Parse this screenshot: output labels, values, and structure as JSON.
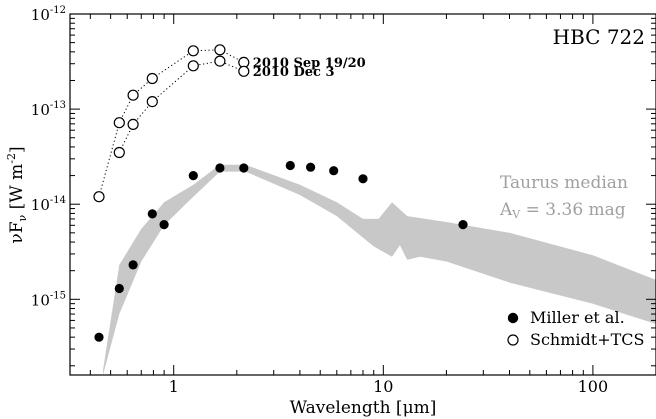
{
  "chart_data": {
    "type": "scatter",
    "title": "HBC 722",
    "xlabel": "Wavelength [μm]",
    "ylabel": "νF_ν [W m^-2]",
    "xscale": "log",
    "yscale": "log",
    "xlim": [
      0.32,
      200
    ],
    "ylim": [
      1.6e-16,
      1e-12
    ],
    "x_ticks": [
      {
        "value": 1,
        "label": "1"
      },
      {
        "value": 10,
        "label": "10"
      },
      {
        "value": 100,
        "label": "100"
      }
    ],
    "y_ticks": [
      {
        "value": 1e-12,
        "label": "10",
        "exp": "-12"
      },
      {
        "value": 1e-13,
        "label": "10",
        "exp": "-13"
      },
      {
        "value": 1e-14,
        "label": "10",
        "exp": "-14"
      },
      {
        "value": 1e-15,
        "label": "10",
        "exp": "-15"
      }
    ],
    "legend_position": "bottom-right",
    "series": [
      {
        "name": "Miller et al.",
        "marker": "filled-circle",
        "points": [
          {
            "x": 0.44,
            "y": 4e-16
          },
          {
            "x": 0.55,
            "y": 1.3e-15
          },
          {
            "x": 0.64,
            "y": 2.3e-15
          },
          {
            "x": 0.79,
            "y": 7.9e-15
          },
          {
            "x": 0.9,
            "y": 6.1e-15
          },
          {
            "x": 1.24,
            "y": 2e-14
          },
          {
            "x": 1.66,
            "y": 2.4e-14
          },
          {
            "x": 2.16,
            "y": 2.4e-14
          },
          {
            "x": 3.6,
            "y": 2.55e-14
          },
          {
            "x": 4.5,
            "y": 2.45e-14
          },
          {
            "x": 5.8,
            "y": 2.25e-14
          },
          {
            "x": 8.0,
            "y": 1.85e-14
          },
          {
            "x": 24.0,
            "y": 6.1e-15
          }
        ]
      },
      {
        "name": "Schmidt+TCS",
        "marker": "open-circle",
        "epochs": [
          {
            "label": "2010 Sep 19/20",
            "points": [
              {
                "x": 0.44,
                "y": 1.2e-14
              },
              {
                "x": 0.55,
                "y": 7.2e-14
              },
              {
                "x": 0.64,
                "y": 1.4e-13
              },
              {
                "x": 0.79,
                "y": 2.1e-13
              },
              {
                "x": 1.24,
                "y": 4.1e-13
              },
              {
                "x": 1.66,
                "y": 4.2e-13
              },
              {
                "x": 2.16,
                "y": 3.1e-13
              }
            ]
          },
          {
            "label": "2010 Dec 3",
            "points": [
              {
                "x": 0.55,
                "y": 3.5e-14
              },
              {
                "x": 0.64,
                "y": 6.9e-14
              },
              {
                "x": 0.79,
                "y": 1.2e-13
              },
              {
                "x": 1.24,
                "y": 2.85e-13
              },
              {
                "x": 1.66,
                "y": 3.2e-13
              },
              {
                "x": 2.16,
                "y": 2.5e-13
              }
            ]
          }
        ]
      }
    ],
    "band": {
      "label_line1": "Taurus median",
      "label_line2_prefix": "A",
      "label_line2_sub": "V",
      "label_line2_rest": " = 3.36 mag",
      "color": "#c8c8c8",
      "label_color": "#a0a0a0",
      "upper": [
        {
          "x": 0.46,
          "y": 1.8e-16
        },
        {
          "x": 0.55,
          "y": 2.3e-15
        },
        {
          "x": 0.7,
          "y": 5.5e-15
        },
        {
          "x": 0.9,
          "y": 1.05e-14
        },
        {
          "x": 1.24,
          "y": 1.6e-14
        },
        {
          "x": 1.66,
          "y": 2.6e-14
        },
        {
          "x": 2.2,
          "y": 2.6e-14
        },
        {
          "x": 4.0,
          "y": 1.6e-14
        },
        {
          "x": 6.0,
          "y": 1.05e-14
        },
        {
          "x": 8.0,
          "y": 7e-15
        },
        {
          "x": 9.5,
          "y": 7e-15
        },
        {
          "x": 11.0,
          "y": 1.05e-14
        },
        {
          "x": 13.0,
          "y": 7.5e-15
        },
        {
          "x": 20.0,
          "y": 6.5e-15
        },
        {
          "x": 40.0,
          "y": 5e-15
        },
        {
          "x": 100.0,
          "y": 2.9e-15
        },
        {
          "x": 200.0,
          "y": 1.6e-15
        }
      ],
      "lower": [
        {
          "x": 200.0,
          "y": 5.5e-16
        },
        {
          "x": 100.0,
          "y": 9e-16
        },
        {
          "x": 40.0,
          "y": 1.5e-15
        },
        {
          "x": 20.0,
          "y": 2.5e-15
        },
        {
          "x": 15.0,
          "y": 2.8e-15
        },
        {
          "x": 13.0,
          "y": 2.6e-15
        },
        {
          "x": 12.0,
          "y": 3.7e-15
        },
        {
          "x": 11.0,
          "y": 2.8e-15
        },
        {
          "x": 9.0,
          "y": 3.6e-15
        },
        {
          "x": 6.0,
          "y": 7.5e-15
        },
        {
          "x": 4.0,
          "y": 1.25e-14
        },
        {
          "x": 2.2,
          "y": 2.2e-14
        },
        {
          "x": 1.66,
          "y": 2.2e-14
        },
        {
          "x": 1.24,
          "y": 1.2e-14
        },
        {
          "x": 0.9,
          "y": 6e-15
        },
        {
          "x": 0.7,
          "y": 2.5e-15
        },
        {
          "x": 0.55,
          "y": 7e-16
        },
        {
          "x": 0.46,
          "y": 1.6e-16
        }
      ]
    }
  }
}
